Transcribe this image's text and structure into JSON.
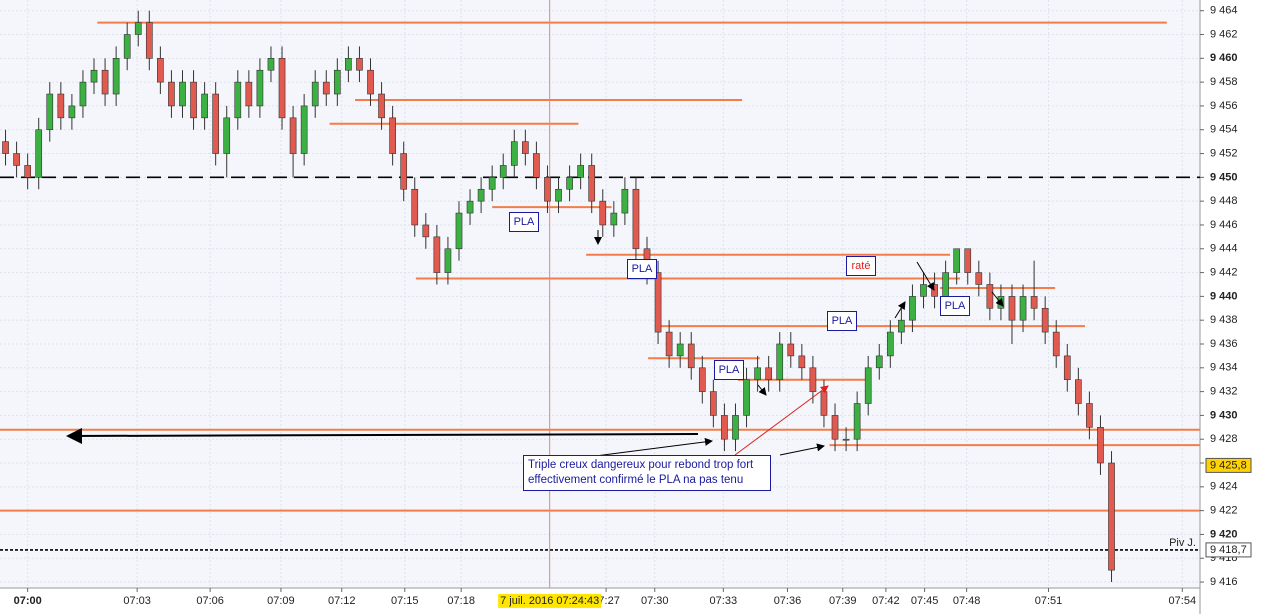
{
  "chart_data": {
    "type": "candlestick",
    "ylim": [
      9415.5,
      9464.9
    ],
    "yticks": [
      {
        "value": 9416,
        "label": "9 416"
      },
      {
        "value": 9418,
        "label": "9 418"
      },
      {
        "value": 9420,
        "label": "9 420"
      },
      {
        "value": 9422,
        "label": "9 422"
      },
      {
        "value": 9424,
        "label": "9 424"
      },
      {
        "value": 9426,
        "label": "9 426"
      },
      {
        "value": 9428,
        "label": "9 428"
      },
      {
        "value": 9430,
        "label": "9 430"
      },
      {
        "value": 9432,
        "label": "9 432"
      },
      {
        "value": 9434,
        "label": "9 434"
      },
      {
        "value": 9436,
        "label": "9 436"
      },
      {
        "value": 9438,
        "label": "9 438"
      },
      {
        "value": 9440,
        "label": "9 440"
      },
      {
        "value": 9442,
        "label": "9 442"
      },
      {
        "value": 9444,
        "label": "9 444"
      },
      {
        "value": 9446,
        "label": "9 446"
      },
      {
        "value": 9448,
        "label": "9 448"
      },
      {
        "value": 9450,
        "label": "9 450"
      },
      {
        "value": 9452,
        "label": "9 452"
      },
      {
        "value": 9454,
        "label": "9 454"
      },
      {
        "value": 9456,
        "label": "9 456"
      },
      {
        "value": 9458,
        "label": "9 458"
      },
      {
        "value": 9460,
        "label": "9 460"
      },
      {
        "value": 9462,
        "label": "9 462"
      },
      {
        "value": 9464,
        "label": "9 464"
      }
    ],
    "xlim": [
      -0.5,
      108
    ],
    "xticks": [
      {
        "value": 2,
        "label": "07:00"
      },
      {
        "value": 11.9,
        "label": "07:03"
      },
      {
        "value": 18.5,
        "label": "07:06"
      },
      {
        "value": 24.9,
        "label": "07:09"
      },
      {
        "value": 30.4,
        "label": "07:12"
      },
      {
        "value": 36.1,
        "label": "07:15"
      },
      {
        "value": 41.2,
        "label": "07:18"
      },
      {
        "value": 54.3,
        "label": "07:27"
      },
      {
        "value": 58.7,
        "label": "07:30"
      },
      {
        "value": 64.9,
        "label": "07:33"
      },
      {
        "value": 70.7,
        "label": "07:36"
      },
      {
        "value": 75.7,
        "label": "07:39"
      },
      {
        "value": 79.6,
        "label": "07:42"
      },
      {
        "value": 83.1,
        "label": "07:45"
      },
      {
        "value": 86.9,
        "label": "07:48"
      },
      {
        "value": 94.3,
        "label": "07:51"
      },
      {
        "value": 106.4,
        "label": "07:54"
      }
    ],
    "grid": true,
    "up_color": "#3cb043",
    "down_color": "#e05a50",
    "candles": [
      [
        9453,
        9454,
        9451,
        9452
      ],
      [
        9452,
        9453,
        9450,
        9451
      ],
      [
        9451,
        9452,
        9449,
        9450
      ],
      [
        9450,
        9455,
        9449,
        9454
      ],
      [
        9454,
        9458,
        9453,
        9457
      ],
      [
        9457,
        9458,
        9454,
        9455
      ],
      [
        9455,
        9457,
        9454,
        9456
      ],
      [
        9456,
        9459,
        9455,
        9458
      ],
      [
        9458,
        9460,
        9457,
        9459
      ],
      [
        9459,
        9460,
        9456,
        9457
      ],
      [
        9457,
        9461,
        9456,
        9460
      ],
      [
        9460,
        9463,
        9459,
        9462
      ],
      [
        9462,
        9464,
        9461,
        9463
      ],
      [
        9463,
        9464,
        9459,
        9460
      ],
      [
        9460,
        9461,
        9457,
        9458
      ],
      [
        9458,
        9459,
        9455,
        9456
      ],
      [
        9456,
        9459,
        9455,
        9458
      ],
      [
        9458,
        9459,
        9454,
        9455
      ],
      [
        9455,
        9458,
        9454,
        9457
      ],
      [
        9457,
        9458,
        9451,
        9452
      ],
      [
        9452,
        9456,
        9450,
        9455
      ],
      [
        9455,
        9459,
        9454,
        9458
      ],
      [
        9458,
        9459,
        9455,
        9456
      ],
      [
        9456,
        9460,
        9455,
        9459
      ],
      [
        9459,
        9461,
        9458,
        9460
      ],
      [
        9460,
        9461,
        9454,
        9455
      ],
      [
        9455,
        9456,
        9450,
        9452
      ],
      [
        9452,
        9457,
        9451,
        9456
      ],
      [
        9456,
        9459,
        9455,
        9458
      ],
      [
        9458,
        9459,
        9456,
        9457
      ],
      [
        9457,
        9460,
        9456,
        9459
      ],
      [
        9459,
        9461,
        9458,
        9460
      ],
      [
        9460,
        9461,
        9458,
        9459
      ],
      [
        9459,
        9460,
        9456,
        9457
      ],
      [
        9457,
        9458,
        9454,
        9455
      ],
      [
        9455,
        9456,
        9451,
        9452
      ],
      [
        9452,
        9453,
        9448,
        9449
      ],
      [
        9449,
        9450,
        9445,
        9446
      ],
      [
        9446,
        9447,
        9444,
        9445
      ],
      [
        9445,
        9446,
        9441,
        9442
      ],
      [
        9442,
        9445,
        9441,
        9444
      ],
      [
        9444,
        9448,
        9443,
        9447
      ],
      [
        9447,
        9449,
        9446,
        9448
      ],
      [
        9448,
        9450,
        9447,
        9449
      ],
      [
        9449,
        9451,
        9448,
        9450
      ],
      [
        9450,
        9452,
        9449,
        9451
      ],
      [
        9451,
        9454,
        9450,
        9453
      ],
      [
        9453,
        9454,
        9451,
        9452
      ],
      [
        9452,
        9453,
        9449,
        9450
      ],
      [
        9450,
        9451,
        9447,
        9448
      ],
      [
        9448,
        9450,
        9447,
        9449
      ],
      [
        9449,
        9451,
        9448,
        9450
      ],
      [
        9450,
        9452,
        9449,
        9451
      ],
      [
        9451,
        9452,
        9447,
        9448
      ],
      [
        9448,
        9449,
        9445,
        9446
      ],
      [
        9446,
        9448,
        9445,
        9447
      ],
      [
        9447,
        9450,
        9446,
        9449
      ],
      [
        9449,
        9450,
        9443,
        9444
      ],
      [
        9444,
        9445,
        9441,
        9442
      ],
      [
        9442,
        9443,
        9436,
        9437
      ],
      [
        9437,
        9438,
        9434,
        9435
      ],
      [
        9435,
        9437,
        9434,
        9436
      ],
      [
        9436,
        9437,
        9433,
        9434
      ],
      [
        9434,
        9435,
        9431,
        9432
      ],
      [
        9432,
        9433,
        9429,
        9430
      ],
      [
        9430,
        9431,
        9427,
        9428
      ],
      [
        9428,
        9431,
        9427,
        9430
      ],
      [
        9430,
        9434,
        9429,
        9433
      ],
      [
        9433,
        9435,
        9432,
        9434
      ],
      [
        9434,
        9435,
        9432,
        9433
      ],
      [
        9433,
        9437,
        9432,
        9436
      ],
      [
        9436,
        9437,
        9434,
        9435
      ],
      [
        9435,
        9436,
        9433,
        9434
      ],
      [
        9434,
        9435,
        9431,
        9432
      ],
      [
        9432,
        9433,
        9429,
        9430
      ],
      [
        9430,
        9431,
        9427,
        9428
      ],
      [
        9428,
        9429,
        9427,
        9428
      ],
      [
        9428,
        9432,
        9427,
        9431
      ],
      [
        9431,
        9435,
        9430,
        9434
      ],
      [
        9434,
        9436,
        9433,
        9435
      ],
      [
        9435,
        9438,
        9434,
        9437
      ],
      [
        9437,
        9439,
        9436,
        9438
      ],
      [
        9438,
        9441,
        9437,
        9440
      ],
      [
        9440,
        9442,
        9439,
        9441
      ],
      [
        9441,
        9442,
        9439,
        9440
      ],
      [
        9440,
        9443,
        9439,
        9442
      ],
      [
        9442,
        9444,
        9441,
        9444
      ],
      [
        9444,
        9444,
        9441,
        9442
      ],
      [
        9442,
        9443,
        9440,
        9441
      ],
      [
        9441,
        9442,
        9438,
        9439
      ],
      [
        9439,
        9441,
        9438,
        9440
      ],
      [
        9440,
        9441,
        9436,
        9438
      ],
      [
        9438,
        9441,
        9437,
        9440
      ],
      [
        9440,
        9443,
        9438,
        9439
      ],
      [
        9439,
        9440,
        9436,
        9437
      ],
      [
        9437,
        9438,
        9434,
        9435
      ],
      [
        9435,
        9436,
        9432,
        9433
      ],
      [
        9433,
        9434,
        9430,
        9431
      ],
      [
        9431,
        9432,
        9428,
        9429
      ],
      [
        9429,
        9430,
        9425,
        9426
      ],
      [
        9426,
        9427,
        9416,
        9417
      ]
    ],
    "levels": [
      {
        "value": 9463,
        "x": [
          8.3,
          105
        ],
        "style": "solid",
        "color": "#f47c48"
      },
      {
        "value": 9456.5,
        "x": [
          31.6,
          66.6
        ],
        "style": "solid",
        "color": "#f47c48"
      },
      {
        "value": 9454.5,
        "x": [
          29.3,
          51.8
        ],
        "style": "solid",
        "color": "#f47c48"
      },
      {
        "value": 9450,
        "x": [
          -0.5,
          108
        ],
        "style": "dashed",
        "color": "#000000"
      },
      {
        "value": 9447.5,
        "x": [
          44,
          54.8
        ],
        "style": "solid",
        "color": "#f47c48"
      },
      {
        "value": 9443.5,
        "x": [
          52.5,
          85.4
        ],
        "style": "solid",
        "color": "#f47c48"
      },
      {
        "value": 9441.5,
        "x": [
          37.1,
          86.3
        ],
        "style": "solid",
        "color": "#f47c48"
      },
      {
        "value": 9440.7,
        "x": [
          84.5,
          94.9
        ],
        "style": "solid",
        "color": "#f47c48"
      },
      {
        "value": 9437.5,
        "x": [
          58.7,
          97.6
        ],
        "style": "solid",
        "color": "#f47c48"
      },
      {
        "value": 9434.8,
        "x": [
          58.1,
          68.2
        ],
        "style": "solid",
        "color": "#f47c48"
      },
      {
        "value": 9433,
        "x": [
          66.2,
          78.3
        ],
        "style": "solid",
        "color": "#f47c48"
      },
      {
        "value": 9428.8,
        "x": [
          -0.5,
          108
        ],
        "style": "solid",
        "color": "#f47c48"
      },
      {
        "value": 9427.5,
        "x": [
          74.5,
          108
        ],
        "style": "solid",
        "color": "#f47c48"
      },
      {
        "value": 9422,
        "x": [
          -0.5,
          108
        ],
        "style": "solid",
        "color": "#f47c48"
      },
      {
        "value": 9418.7,
        "x": [
          -0.5,
          108
        ],
        "style": "dotted",
        "color": "#000000"
      }
    ],
    "crosshair": {
      "x": 49.2,
      "label": "7 juil. 2016 07:24:43",
      "color": "#f08080"
    },
    "tags": [
      {
        "value": 9425.8,
        "label": "9 425,8",
        "color": "#ffd200"
      },
      {
        "value": 9418.7,
        "label": "9 418,7",
        "color": "#ffffff"
      }
    ],
    "pivot_label": "Piv J.",
    "annotations": {
      "pla": "PLA",
      "missed": "raté",
      "note": [
        "Triple creux dangereux pour rebond trop fort",
        "effectivement confirmé le PLA na pas tenu"
      ]
    }
  }
}
